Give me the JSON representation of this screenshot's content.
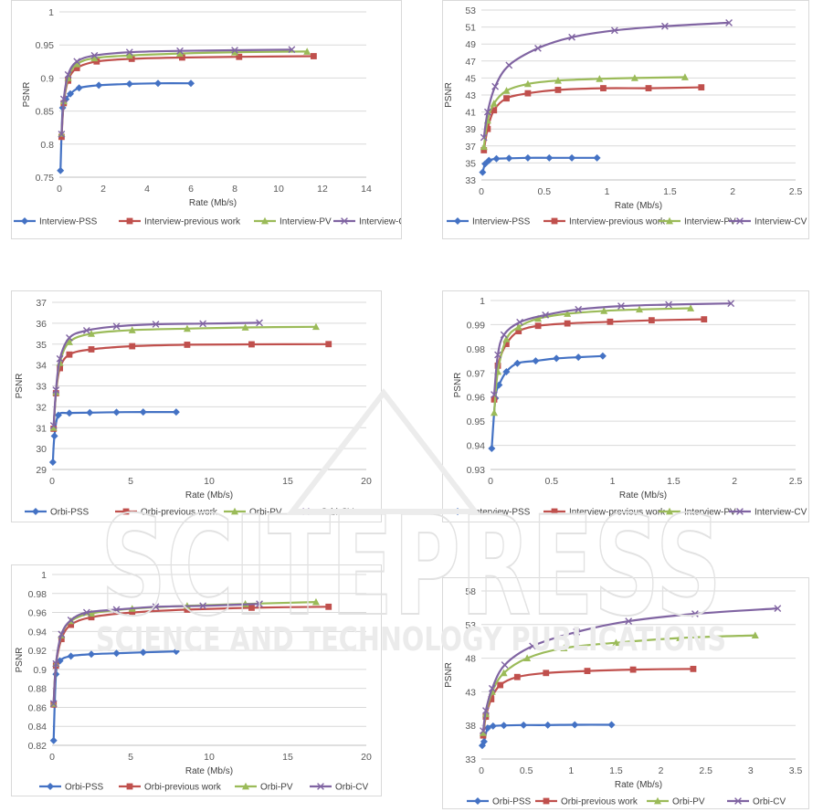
{
  "watermark": {
    "main": "SCITEPRESS",
    "sub": "SCIENCE AND TECHNOLOGY PUBLICATIONS"
  },
  "colors": {
    "PSS": "#4472c4",
    "previous work": "#c0504d",
    "PV": "#9bbb59",
    "CV": "#8064a2"
  },
  "chart_data": [
    {
      "type": "line",
      "xlabel": "Rate (Mb/s)",
      "ylabel": "PSNR",
      "xlim": [
        0,
        14
      ],
      "ylim": [
        0.75,
        1
      ],
      "xticks": [
        0,
        2,
        4,
        6,
        8,
        10,
        12,
        14
      ],
      "yticks": [
        0.75,
        0.8,
        0.85,
        0.9,
        0.95,
        1
      ],
      "ytick_labels": [
        "0.75",
        "0.8",
        "0.85",
        "0.9",
        "0.95",
        "1"
      ],
      "legend_position": "bottom",
      "series": [
        {
          "name": "Interview-PSS",
          "marker": "diamond",
          "x": [
            0.05,
            0.15,
            0.3,
            0.5,
            0.9,
            1.8,
            3.2,
            4.5,
            6.0
          ],
          "y": [
            0.76,
            0.855,
            0.868,
            0.876,
            0.885,
            0.889,
            0.891,
            0.892,
            0.892
          ]
        },
        {
          "name": "Interview-previous work",
          "marker": "square",
          "x": [
            0.1,
            0.2,
            0.4,
            0.8,
            1.7,
            3.3,
            5.6,
            8.2,
            11.6
          ],
          "y": [
            0.811,
            0.862,
            0.896,
            0.915,
            0.925,
            0.929,
            0.931,
            0.932,
            0.933
          ]
        },
        {
          "name": "Interview-PV",
          "marker": "triangle",
          "x": [
            0.1,
            0.2,
            0.4,
            0.8,
            1.6,
            3.2,
            5.5,
            8.0,
            11.3
          ],
          "y": [
            0.816,
            0.865,
            0.9,
            0.921,
            0.93,
            0.934,
            0.937,
            0.939,
            0.94
          ]
        },
        {
          "name": "Interview-CV",
          "marker": "x",
          "x": [
            0.1,
            0.2,
            0.4,
            0.8,
            1.6,
            3.2,
            5.5,
            8.0,
            10.6
          ],
          "y": [
            0.815,
            0.868,
            0.905,
            0.925,
            0.934,
            0.939,
            0.941,
            0.942,
            0.943
          ]
        }
      ]
    },
    {
      "type": "line",
      "xlabel": "Rate (Mb/s)",
      "ylabel": "PSNR",
      "xlim": [
        0,
        2.5
      ],
      "ylim": [
        33,
        53
      ],
      "xticks": [
        0,
        0.5,
        1,
        1.5,
        2,
        2.5
      ],
      "yticks": [
        33,
        35,
        37,
        39,
        41,
        43,
        45,
        47,
        49,
        51,
        53
      ],
      "ytick_labels": [
        "33",
        "35",
        "37",
        "39",
        "41",
        "43",
        "45",
        "47",
        "49",
        "51",
        "53"
      ],
      "legend_position": "bottom",
      "series": [
        {
          "name": "Interview-PSS",
          "marker": "diamond",
          "x": [
            0.01,
            0.03,
            0.06,
            0.12,
            0.22,
            0.37,
            0.54,
            0.72,
            0.92
          ],
          "y": [
            33.9,
            34.9,
            35.3,
            35.5,
            35.55,
            35.6,
            35.6,
            35.6,
            35.6
          ]
        },
        {
          "name": "Interview-previous work",
          "marker": "square",
          "x": [
            0.02,
            0.05,
            0.1,
            0.2,
            0.37,
            0.61,
            0.97,
            1.33,
            1.75
          ],
          "y": [
            36.5,
            39.0,
            41.2,
            42.6,
            43.2,
            43.6,
            43.8,
            43.8,
            43.9
          ]
        },
        {
          "name": "Interview-PV",
          "marker": "triangle",
          "x": [
            0.02,
            0.05,
            0.1,
            0.2,
            0.37,
            0.61,
            0.94,
            1.22,
            1.62
          ],
          "y": [
            36.9,
            40.0,
            42.0,
            43.5,
            44.3,
            44.7,
            44.9,
            45.0,
            45.1
          ]
        },
        {
          "name": "Interview-CV",
          "marker": "x",
          "x": [
            0.02,
            0.05,
            0.11,
            0.22,
            0.45,
            0.72,
            1.06,
            1.46,
            1.97
          ],
          "y": [
            38.0,
            41.0,
            44.0,
            46.5,
            48.5,
            49.8,
            50.6,
            51.1,
            51.5
          ]
        }
      ]
    },
    {
      "type": "line",
      "xlabel": "Rate (Mb/s)",
      "ylabel": "PSNR",
      "xlim": [
        0,
        20
      ],
      "ylim": [
        29,
        37
      ],
      "xticks": [
        0,
        5,
        10,
        15,
        20
      ],
      "yticks": [
        29,
        30,
        31,
        32,
        33,
        34,
        35,
        36,
        37
      ],
      "ytick_labels": [
        "29",
        "30",
        "31",
        "32",
        "33",
        "34",
        "35",
        "36",
        "37"
      ],
      "legend_position": "bottom",
      "series": [
        {
          "name": "Orbi-PSS",
          "marker": "diamond",
          "x": [
            0.05,
            0.15,
            0.4,
            1.1,
            2.4,
            4.1,
            5.8,
            7.9
          ],
          "y": [
            29.35,
            30.6,
            31.6,
            31.7,
            31.72,
            31.74,
            31.75,
            31.75
          ]
        },
        {
          "name": "Orbi-previous work",
          "marker": "square",
          "x": [
            0.1,
            0.25,
            0.5,
            1.1,
            2.5,
            5.1,
            8.6,
            12.7,
            17.6
          ],
          "y": [
            30.95,
            32.65,
            33.85,
            34.5,
            34.75,
            34.9,
            34.97,
            34.99,
            35.0
          ]
        },
        {
          "name": "Orbi-PV",
          "marker": "triangle",
          "x": [
            0.1,
            0.25,
            0.5,
            1.1,
            2.5,
            5.1,
            8.6,
            12.3,
            16.8
          ],
          "y": [
            31.0,
            32.7,
            34.1,
            35.1,
            35.5,
            35.67,
            35.74,
            35.8,
            35.83
          ]
        },
        {
          "name": "Orbi-CV",
          "marker": "x",
          "x": [
            0.1,
            0.25,
            0.5,
            1.1,
            2.2,
            4.1,
            6.6,
            9.6,
            13.2
          ],
          "y": [
            31.1,
            32.8,
            34.3,
            35.3,
            35.65,
            35.85,
            35.95,
            35.98,
            36.02
          ]
        }
      ]
    },
    {
      "type": "line",
      "xlabel": "Rate (Mb/s)",
      "ylabel": "PSNR",
      "xlim": [
        0,
        2.5
      ],
      "ylim": [
        0.93,
        1
      ],
      "xticks": [
        0,
        0.5,
        1,
        1.5,
        2,
        2.5
      ],
      "yticks": [
        0.93,
        0.94,
        0.95,
        0.96,
        0.97,
        0.98,
        0.99,
        1
      ],
      "ytick_labels": [
        "0.93",
        "0.94",
        "0.95",
        "0.96",
        "0.97",
        "0.98",
        "0.99",
        "1"
      ],
      "legend_position": "bottom",
      "series": [
        {
          "name": "Interview-PSS",
          "marker": "diamond",
          "x": [
            0.01,
            0.04,
            0.07,
            0.13,
            0.22,
            0.37,
            0.54,
            0.72,
            0.92
          ],
          "y": [
            0.9387,
            0.9595,
            0.965,
            0.9705,
            0.974,
            0.975,
            0.976,
            0.9765,
            0.977
          ]
        },
        {
          "name": "Interview-previous work",
          "marker": "square",
          "x": [
            0.03,
            0.06,
            0.13,
            0.23,
            0.39,
            0.63,
            0.98,
            1.32,
            1.75
          ],
          "y": [
            0.959,
            0.973,
            0.982,
            0.9873,
            0.9895,
            0.9905,
            0.9912,
            0.9918,
            0.9922
          ]
        },
        {
          "name": "Interview-PV",
          "marker": "triangle",
          "x": [
            0.03,
            0.06,
            0.13,
            0.23,
            0.39,
            0.63,
            0.93,
            1.22,
            1.64
          ],
          "y": [
            0.9535,
            0.9705,
            0.984,
            0.989,
            0.9925,
            0.9945,
            0.9957,
            0.9963,
            0.9968
          ]
        },
        {
          "name": "Interview-CV",
          "marker": "x",
          "x": [
            0.03,
            0.06,
            0.11,
            0.24,
            0.45,
            0.72,
            1.07,
            1.46,
            1.97
          ],
          "y": [
            0.961,
            0.9775,
            0.9858,
            0.991,
            0.994,
            0.9963,
            0.9977,
            0.9983,
            0.9988
          ]
        }
      ]
    },
    {
      "type": "line",
      "xlabel": "Rate (Mb/s)",
      "ylabel": "PSNR",
      "xlim": [
        0,
        20
      ],
      "ylim": [
        0.82,
        1
      ],
      "xticks": [
        0,
        5,
        10,
        15,
        20
      ],
      "yticks": [
        0.82,
        0.84,
        0.86,
        0.88,
        0.9,
        0.92,
        0.94,
        0.96,
        0.98,
        1
      ],
      "ytick_labels": [
        "0.82",
        "0.84",
        "0.86",
        "0.88",
        "0.9",
        "0.92",
        "0.94",
        "0.96",
        "0.98",
        "1"
      ],
      "legend_position": "bottom",
      "series": [
        {
          "name": "Orbi-PSS",
          "marker": "diamond",
          "x": [
            0.1,
            0.25,
            0.5,
            1.2,
            2.5,
            4.1,
            5.8,
            7.9
          ],
          "y": [
            0.825,
            0.895,
            0.909,
            0.914,
            0.916,
            0.917,
            0.918,
            0.919
          ]
        },
        {
          "name": "Orbi-previous work",
          "marker": "square",
          "x": [
            0.1,
            0.25,
            0.6,
            1.2,
            2.5,
            5.1,
            8.6,
            12.7,
            17.6
          ],
          "y": [
            0.863,
            0.904,
            0.932,
            0.947,
            0.955,
            0.96,
            0.963,
            0.965,
            0.966
          ]
        },
        {
          "name": "Orbi-PV",
          "marker": "triangle",
          "x": [
            0.1,
            0.25,
            0.6,
            1.2,
            2.5,
            5.1,
            8.6,
            12.3,
            16.8
          ],
          "y": [
            0.864,
            0.906,
            0.936,
            0.951,
            0.959,
            0.964,
            0.967,
            0.969,
            0.971
          ]
        },
        {
          "name": "Orbi-CV",
          "marker": "x",
          "x": [
            0.1,
            0.25,
            0.6,
            1.2,
            2.2,
            4.1,
            6.6,
            9.6,
            13.2
          ],
          "y": [
            0.864,
            0.906,
            0.937,
            0.952,
            0.96,
            0.963,
            0.966,
            0.967,
            0.969
          ]
        }
      ]
    },
    {
      "type": "line",
      "xlabel": "Rate (Mb/s)",
      "ylabel": "PSNR",
      "xlim": [
        0,
        3.5
      ],
      "ylim": [
        33,
        58
      ],
      "xticks": [
        0,
        0.5,
        1,
        1.5,
        2,
        2.5,
        3,
        3.5
      ],
      "yticks": [
        33,
        38,
        43,
        48,
        53,
        58
      ],
      "ytick_labels": [
        "33",
        "38",
        "43",
        "48",
        "53",
        "58"
      ],
      "legend_position": "bottom",
      "series": [
        {
          "name": "Orbi-PSS",
          "marker": "diamond",
          "x": [
            0.01,
            0.03,
            0.07,
            0.13,
            0.25,
            0.47,
            0.74,
            1.04,
            1.45
          ],
          "y": [
            35.0,
            35.6,
            37.6,
            37.9,
            38.0,
            38.05,
            38.05,
            38.1,
            38.1
          ]
        },
        {
          "name": "Orbi-previous work",
          "marker": "square",
          "x": [
            0.02,
            0.05,
            0.11,
            0.21,
            0.4,
            0.72,
            1.18,
            1.69,
            2.36
          ],
          "y": [
            36.5,
            39.3,
            41.9,
            44.0,
            45.2,
            45.8,
            46.1,
            46.3,
            46.4
          ]
        },
        {
          "name": "Orbi-PV",
          "marker": "triangle",
          "x": [
            0.02,
            0.05,
            0.12,
            0.25,
            0.51,
            0.92,
            1.5,
            2.21,
            3.05
          ],
          "y": [
            36.9,
            39.7,
            43.0,
            45.8,
            48.0,
            49.5,
            50.3,
            51.0,
            51.4
          ]
        },
        {
          "name": "Orbi-CV",
          "marker": "x",
          "x": [
            0.02,
            0.05,
            0.12,
            0.26,
            0.57,
            1.06,
            1.64,
            2.38,
            3.3
          ],
          "y": [
            37.2,
            40.2,
            43.5,
            47.0,
            49.8,
            51.9,
            53.5,
            54.6,
            55.4
          ]
        }
      ]
    }
  ]
}
